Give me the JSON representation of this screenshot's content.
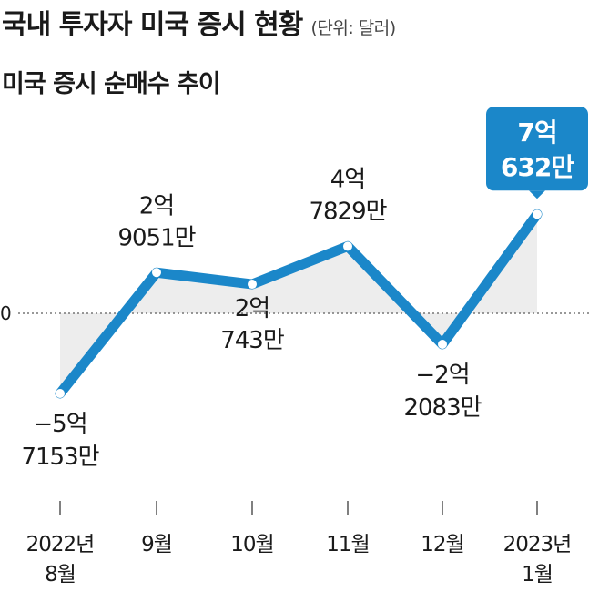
{
  "title": "국내 투자자 미국 증시 현황",
  "unit": "(단위: 달러)",
  "chart_data": {
    "type": "line",
    "subtitle": "미국 증시 순매수 추이",
    "zero_label": "0",
    "categories": [
      {
        "line1": "2022년",
        "line2": "8월"
      },
      {
        "line1": "9월",
        "line2": ""
      },
      {
        "line1": "10월",
        "line2": ""
      },
      {
        "line1": "11월",
        "line2": ""
      },
      {
        "line1": "12월",
        "line2": ""
      },
      {
        "line1": "2023년",
        "line2": "1월"
      }
    ],
    "values": [
      -571530000,
      290510000,
      207430000,
      478290000,
      -220830000,
      706320000
    ],
    "value_labels": [
      {
        "line1": "−5억",
        "line2": "7153만"
      },
      {
        "line1": "2억",
        "line2": "9051만"
      },
      {
        "line1": "2억",
        "line2": "743만"
      },
      {
        "line1": "4억",
        "line2": "7829만"
      },
      {
        "line1": "−2억",
        "line2": "2083만"
      },
      {
        "line1": "7억",
        "line2": "632만"
      }
    ],
    "highlight_index": 5,
    "colors": {
      "line": "#1b87c9",
      "area": "#ededed",
      "highlight_bg": "#1b87c9"
    }
  }
}
